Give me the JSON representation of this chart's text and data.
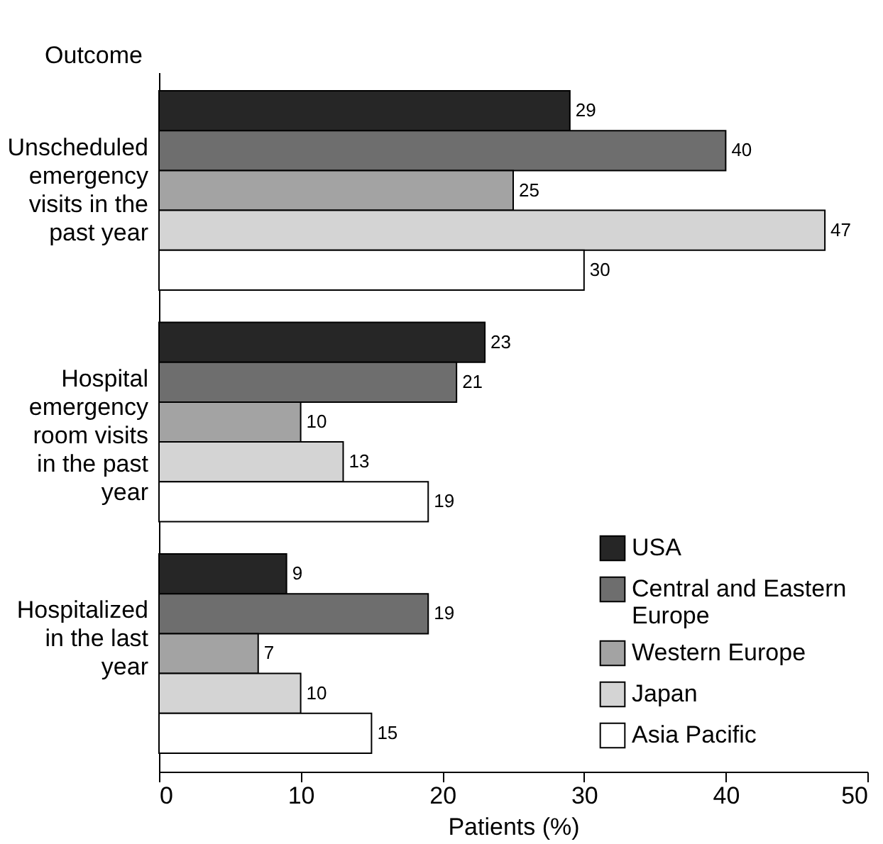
{
  "chart_data": {
    "type": "bar",
    "orientation": "horizontal",
    "xlabel": "Patients (%)",
    "ylabel": "Outcome",
    "categories": [
      "Unscheduled emergency visits in the past year",
      "Hospital emergency room visits in the past year",
      "Hospitalized in the last year"
    ],
    "series": [
      {
        "name": "USA",
        "color": "#262626",
        "values": [
          29,
          23,
          9
        ]
      },
      {
        "name": "Central and Eastern Europe",
        "color": "#6e6e6e",
        "values": [
          40,
          21,
          19
        ]
      },
      {
        "name": "Western Europe",
        "color": "#a3a3a3",
        "values": [
          25,
          10,
          7
        ]
      },
      {
        "name": "Japan",
        "color": "#d4d4d4",
        "values": [
          47,
          13,
          10
        ]
      },
      {
        "name": "Asia Pacific",
        "color": "#ffffff",
        "values": [
          30,
          19,
          15
        ]
      }
    ],
    "xlim": [
      0,
      50
    ],
    "xticks": [
      0,
      10,
      20,
      30,
      40,
      50
    ],
    "data_labels": true,
    "legend": "bottom right"
  }
}
